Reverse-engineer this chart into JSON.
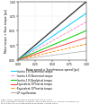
{
  "title": "",
  "xlabel": "Rotor speed × Synchronous speed [pu]",
  "ylabel": "Motor torque × Base torque [pu]",
  "xlim": [
    0,
    1
  ],
  "ylim": [
    0,
    1
  ],
  "xscale": "linear",
  "yscale": "linear",
  "background_color": "#ffffff",
  "lines": [
    {
      "label": "Inertia 1 El.Numerical torque",
      "color": "#303030",
      "style": "-",
      "lw": 0.9,
      "slope": 1.0
    },
    {
      "label": "Inertia 1 El.Numerical torque",
      "color": "#00cfff",
      "style": "-",
      "lw": 0.7,
      "slope": 0.8
    },
    {
      "label": "Inertia 1 El.Numerical torque",
      "color": "#ff80c0",
      "style": "--",
      "lw": 0.6,
      "slope": 0.65
    },
    {
      "label": "Inertia 1 El.Analytical torque",
      "color": "#00cc00",
      "style": "-",
      "lw": 0.7,
      "slope": 0.5
    },
    {
      "label": "Equivalent 10*Inertia torque",
      "color": "#ff3030",
      "style": "-",
      "lw": 0.6,
      "slope": 0.38
    },
    {
      "label": "Equivalent 10*Inertia torque",
      "color": "#ff8800",
      "style": "--",
      "lw": 0.6,
      "slope": 0.27
    },
    {
      "label": "LP equilibration",
      "color": "#aaaaaa",
      "style": "-",
      "lw": 0.5,
      "slope": 0.15
    }
  ],
  "legend_entries": [
    {
      "label": "Inertia 1 El.Numerical torque",
      "color": "#00cfff",
      "style": "-"
    },
    {
      "label": "Inertia 1 El.Numerical torque",
      "color": "#ff80c0",
      "style": "--"
    },
    {
      "label": "Inertia 1 El.Analytical torque",
      "color": "#00cc00",
      "style": "-"
    },
    {
      "label": "Equivalent 10*Inertia torque",
      "color": "#ff3030",
      "style": "-"
    },
    {
      "label": "Equivalent 10*Inertia torque",
      "color": "#ff8800",
      "style": "--"
    },
    {
      "label": "LP equilibration",
      "color": "#aaaaaa",
      "style": "-"
    }
  ],
  "caption_lines": [
    "Note: 100% inertia torque means that 100% of the",
    "electromagnetic torque is used to accelerate the rotor. 100%/1,000 starts are",
    "to achieve the corresponding rated torque / phase value."
  ],
  "xticks": [
    0.0,
    0.25,
    0.5,
    0.75,
    1.0
  ],
  "yticks": [
    0.0,
    0.25,
    0.5,
    0.75,
    1.0
  ]
}
